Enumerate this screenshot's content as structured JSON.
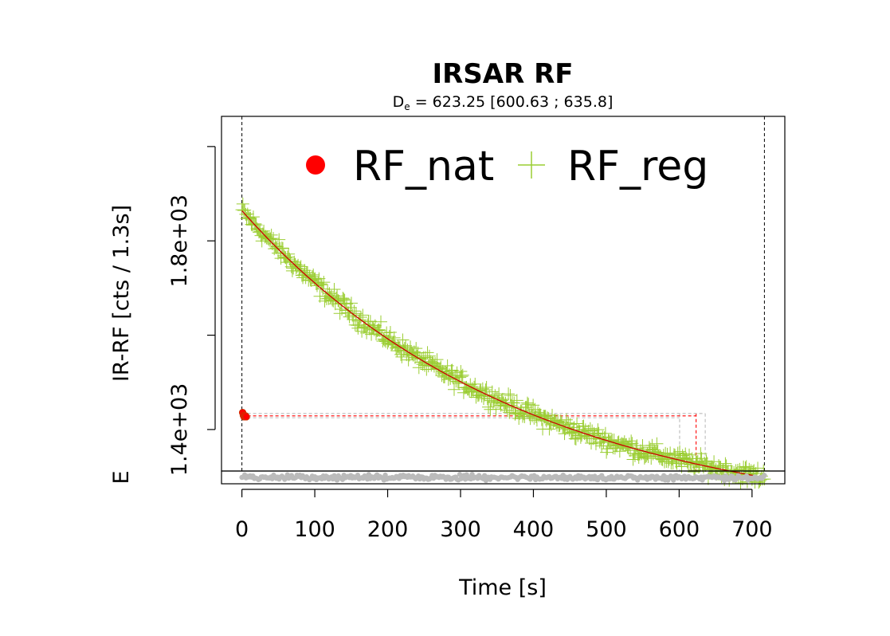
{
  "chart_data": {
    "type": "scatter",
    "title": "IRSAR RF",
    "subtitle": {
      "prefix": "D",
      "subscript": "e",
      "text": " = 623.25 [600.63 ; 635.8]"
    },
    "xlabel": "Time [s]",
    "ylabel": "IR-RF [cts / 1.3s]",
    "residual_label": "E",
    "xlim": [
      -28,
      745
    ],
    "ylim": [
      1312,
      2064
    ],
    "x_ticks": [
      0,
      100,
      200,
      300,
      400,
      500,
      600,
      700
    ],
    "x_tick_labels": [
      "0",
      "100",
      "200",
      "300",
      "400",
      "500",
      "600",
      "700"
    ],
    "y_ticks": [
      1400,
      1600,
      1800,
      2000
    ],
    "y_tick_labels": [
      {
        "value": 1400,
        "label": "1.4e+03"
      },
      {
        "value": 1800,
        "label": "1.8e+03"
      }
    ],
    "grid": false,
    "legend": {
      "placement": "top",
      "entries": [
        {
          "label": "RF_nat",
          "marker": "filled-circle",
          "color": "#ff0000"
        },
        {
          "label": "RF_reg",
          "marker": "plus",
          "color": "#9acd32"
        }
      ]
    },
    "series": [
      {
        "name": "RF_reg",
        "marker": "plus",
        "color": "#9acd32",
        "x_range": [
          0,
          717
        ],
        "n_points": 550,
        "decay_model": {
          "y0": 1864,
          "offset": 1195,
          "amplitude": 669,
          "tau": 384
        }
      },
      {
        "name": "RF_nat",
        "marker": "filled-circle",
        "color": "#ff0000",
        "points": [
          {
            "x": 1,
            "y": 1436
          },
          {
            "x": 2,
            "y": 1430
          },
          {
            "x": 3,
            "y": 1427
          },
          {
            "x": 4,
            "y": 1428
          },
          {
            "x": 5,
            "y": 1429
          },
          {
            "x": 6,
            "y": 1427
          }
        ]
      }
    ],
    "fit_line": {
      "color": "#cc0000",
      "x_range": [
        0,
        717
      ]
    },
    "vertical_lines": [
      {
        "x": 0,
        "style": "dashed",
        "color": "#000000"
      },
      {
        "x": 717,
        "style": "dashed",
        "color": "#000000"
      },
      {
        "x": 623.25,
        "style": "dashed",
        "color": "#ff0000"
      },
      {
        "x": 600.63,
        "style": "dashed",
        "color": "#bbbbbb"
      },
      {
        "x": 635.8,
        "style": "dashed",
        "color": "#bbbbbb"
      }
    ],
    "horizontal_lines": [
      {
        "y": 1429,
        "style": "dashed",
        "color": "#ff0000"
      },
      {
        "y": 1434,
        "style": "dashed",
        "color": "#bbbbbb"
      },
      {
        "y": 1425,
        "style": "dashed",
        "color": "#bbbbbb"
      }
    ],
    "residuals": {
      "color": "#bbbbbb",
      "x_range": [
        0,
        717
      ]
    }
  }
}
